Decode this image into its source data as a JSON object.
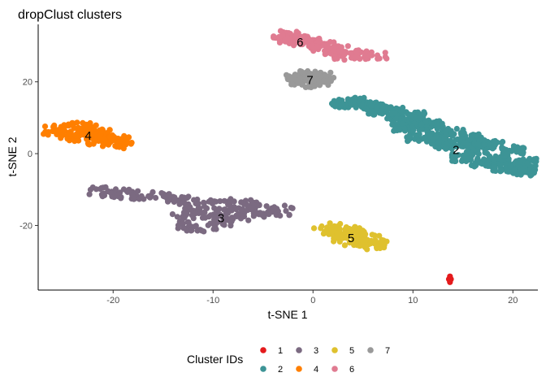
{
  "chart_data": {
    "type": "scatter",
    "title": "dropClust clusters",
    "xlabel": "t-SNE 1",
    "ylabel": "t-SNE 2",
    "xlim": [
      -27.5,
      22.5
    ],
    "ylim": [
      -38,
      36
    ],
    "xticks": [
      -20,
      -10,
      0,
      10,
      20
    ],
    "yticks": [
      -20,
      0,
      20
    ],
    "grid": false,
    "legend": {
      "title": "Cluster IDs",
      "position": "bottom",
      "items": [
        {
          "label": "1",
          "color": "#E41A1C"
        },
        {
          "label": "2",
          "color": "#3D9496"
        },
        {
          "label": "3",
          "color": "#7B6A81"
        },
        {
          "label": "4",
          "color": "#FF7F00"
        },
        {
          "label": "5",
          "color": "#DFC12E"
        },
        {
          "label": "6",
          "color": "#E07B91"
        },
        {
          "label": "7",
          "color": "#999999"
        }
      ]
    },
    "series": [
      {
        "name": "1",
        "color": "#E41A1C",
        "centroid": [
          13.7,
          -35
        ],
        "shape": [
          [
            13.7,
            -34.2
          ],
          [
            13.7,
            -34.6
          ],
          [
            13.7,
            -35
          ],
          [
            13.7,
            -35.4
          ],
          [
            13.7,
            -35.8
          ],
          [
            13.6,
            -35
          ],
          [
            13.8,
            -35
          ]
        ]
      },
      {
        "name": "2",
        "color": "#3D9496",
        "centroid": [
          14.3,
          1
        ],
        "shape": [
          [
            2.8,
            14
          ],
          [
            4.5,
            13.5
          ],
          [
            6.5,
            12
          ],
          [
            8.5,
            10
          ],
          [
            10.5,
            7.5
          ],
          [
            12.5,
            5
          ],
          [
            14.5,
            3
          ],
          [
            16.5,
            1
          ],
          [
            18.5,
            -1.5
          ],
          [
            20.5,
            -4
          ],
          [
            21.2,
            -5
          ],
          [
            21.2,
            -2.5
          ],
          [
            20,
            1
          ],
          [
            18,
            2.5
          ],
          [
            16,
            4.5
          ],
          [
            14,
            6
          ],
          [
            12,
            8
          ],
          [
            10,
            10.5
          ],
          [
            8,
            12
          ],
          [
            6,
            13.5
          ],
          [
            4,
            14.5
          ],
          [
            10.5,
            4.5
          ],
          [
            13,
            2.5
          ],
          [
            15,
            -1
          ],
          [
            17,
            -2.5
          ],
          [
            19,
            -4
          ],
          [
            12,
            4
          ],
          [
            16,
            3
          ],
          [
            11,
            9
          ],
          [
            9,
            7.5
          ]
        ]
      },
      {
        "name": "3",
        "color": "#7B6A81",
        "centroid": [
          -9.2,
          -18
        ],
        "shape": [
          [
            -21.5,
            -10.5
          ],
          [
            -20.5,
            -11
          ],
          [
            -19.5,
            -11
          ],
          [
            -18.5,
            -11.5
          ],
          [
            -17,
            -11.5
          ],
          [
            -15.5,
            -12
          ],
          [
            -14,
            -12.5
          ],
          [
            -13,
            -13
          ],
          [
            -13,
            -18
          ],
          [
            -12.5,
            -20
          ],
          [
            -11.5,
            -21
          ],
          [
            -10,
            -20.5
          ],
          [
            -9,
            -19
          ],
          [
            -8,
            -18
          ],
          [
            -6.5,
            -17.5
          ],
          [
            -5,
            -16.5
          ],
          [
            -3.5,
            -16.5
          ],
          [
            -3,
            -15.5
          ],
          [
            -5,
            -14.5
          ],
          [
            -7,
            -14
          ],
          [
            -9,
            -13.5
          ],
          [
            -11,
            -13
          ],
          [
            -12,
            -15.5
          ],
          [
            -10.5,
            -16
          ],
          [
            -8,
            -16
          ],
          [
            -6,
            -15.5
          ],
          [
            -10,
            -18
          ],
          [
            -12,
            -17
          ]
        ]
      },
      {
        "name": "4",
        "color": "#FF7F00",
        "centroid": [
          -22.5,
          5
        ],
        "shape": [
          [
            -25.8,
            6.5
          ],
          [
            -25,
            7
          ],
          [
            -24,
            7.5
          ],
          [
            -23,
            7.5
          ],
          [
            -22,
            7
          ],
          [
            -21,
            6
          ],
          [
            -20,
            5
          ],
          [
            -19.5,
            3.5
          ],
          [
            -19.2,
            2.5
          ],
          [
            -20.5,
            3
          ],
          [
            -21.5,
            3.5
          ],
          [
            -22.5,
            3.5
          ],
          [
            -23.5,
            4
          ],
          [
            -24.5,
            5
          ],
          [
            -25.5,
            5.5
          ],
          [
            -23,
            5.5
          ],
          [
            -22,
            5
          ],
          [
            -21,
            4.5
          ],
          [
            -24,
            6
          ]
        ]
      },
      {
        "name": "5",
        "color": "#DFC12E",
        "centroid": [
          3.8,
          -23.5
        ],
        "shape": [
          [
            1.2,
            -21.5
          ],
          [
            1.8,
            -20.5
          ],
          [
            2.5,
            -21.5
          ],
          [
            3,
            -22
          ],
          [
            3.5,
            -22.5
          ],
          [
            4,
            -23
          ],
          [
            4.5,
            -23.5
          ],
          [
            5,
            -24
          ],
          [
            5.5,
            -24.5
          ],
          [
            6,
            -25
          ],
          [
            6.3,
            -25.5
          ],
          [
            5.8,
            -23.5
          ],
          [
            4.8,
            -22.5
          ],
          [
            3.8,
            -21.5
          ],
          [
            2.2,
            -22.5
          ],
          [
            3.2,
            -23.5
          ],
          [
            4.2,
            -24.5
          ],
          [
            5.2,
            -25.5
          ]
        ]
      },
      {
        "name": "6",
        "color": "#E07B91",
        "centroid": [
          -1.3,
          31
        ],
        "shape": [
          [
            -3,
            32.5
          ],
          [
            -2.5,
            33
          ],
          [
            -1.5,
            32.5
          ],
          [
            -0.5,
            32
          ],
          [
            0.5,
            31
          ],
          [
            1.5,
            30
          ],
          [
            2.5,
            29
          ],
          [
            3.5,
            28
          ],
          [
            4.2,
            27
          ],
          [
            3.2,
            27.5
          ],
          [
            2,
            28.5
          ],
          [
            1,
            29.5
          ],
          [
            -0.3,
            30.5
          ],
          [
            -1.5,
            31
          ],
          [
            -2.5,
            31.5
          ],
          [
            -2,
            32
          ],
          [
            -1,
            31.5
          ],
          [
            0,
            30.5
          ],
          [
            6.2,
            27.2
          ],
          [
            5,
            27.5
          ]
        ]
      },
      {
        "name": "7",
        "color": "#999999",
        "centroid": [
          -0.3,
          20.5
        ],
        "shape": [
          [
            -1.5,
            20.5
          ],
          [
            -1.5,
            21.5
          ],
          [
            -0.8,
            22
          ],
          [
            0,
            22
          ],
          [
            0.8,
            21.5
          ],
          [
            1,
            20.8
          ],
          [
            0.5,
            20
          ],
          [
            -0.3,
            19.5
          ],
          [
            -1,
            19.8
          ],
          [
            -0.5,
            20.8
          ],
          [
            0.3,
            21
          ]
        ]
      }
    ]
  }
}
